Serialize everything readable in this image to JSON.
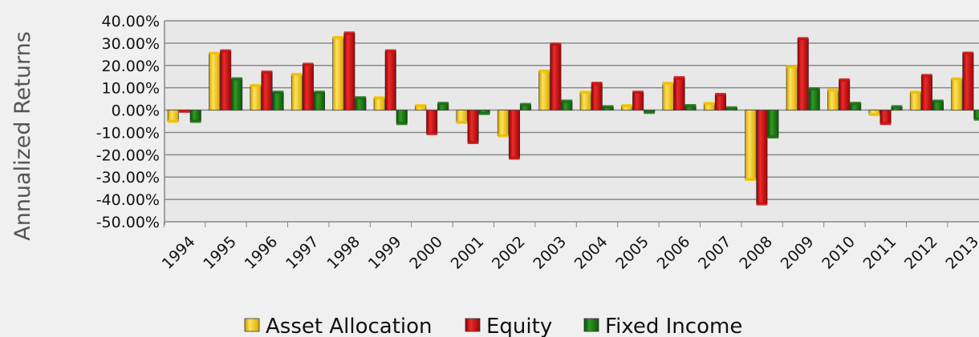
{
  "chart_data": {
    "type": "bar",
    "title": "",
    "ylabel": "Annualized Returns",
    "xlabel": "",
    "ylim": [
      -50,
      40
    ],
    "yticks": [
      40,
      30,
      20,
      10,
      0,
      -10,
      -20,
      -30,
      -40,
      -50
    ],
    "ytick_labels": [
      "40.00%",
      "30.00%",
      "20.00%",
      "10.00%",
      "0.00%",
      "-10.00%",
      "-20.00%",
      "-30.00%",
      "-40.00%",
      "-50.00%"
    ],
    "categories": [
      "1994",
      "1995",
      "1996",
      "1997",
      "1998",
      "1999",
      "2000",
      "2001",
      "2002",
      "2003",
      "2004",
      "2005",
      "2006",
      "2007",
      "2008",
      "2009",
      "2010",
      "2011",
      "2012",
      "2013"
    ],
    "series": [
      {
        "name": "Asset Allocation",
        "color": "#f5c400",
        "values": [
          -5,
          25.5,
          11,
          16,
          32.5,
          5.5,
          2,
          -5.5,
          -11.5,
          17.5,
          8,
          2,
          12,
          3,
          -31,
          19.5,
          9,
          -2,
          8,
          14
        ]
      },
      {
        "name": "Equity",
        "color": "#c81010",
        "values": [
          -0.5,
          26.5,
          17,
          20.5,
          34.5,
          26.5,
          -10.5,
          -14.5,
          -21.5,
          29.5,
          12,
          8,
          14.5,
          7,
          -42,
          32,
          13.5,
          -6,
          15.5,
          25.5
        ]
      },
      {
        "name": "Fixed Income",
        "color": "#1a6f14",
        "values": [
          -5,
          14,
          8,
          8,
          5.5,
          -6,
          3,
          -1.5,
          2.5,
          4,
          1.5,
          -1,
          2,
          1,
          -12,
          9.5,
          3,
          1.5,
          4,
          -4
        ]
      }
    ],
    "legend_position": "bottom",
    "grid": true
  }
}
